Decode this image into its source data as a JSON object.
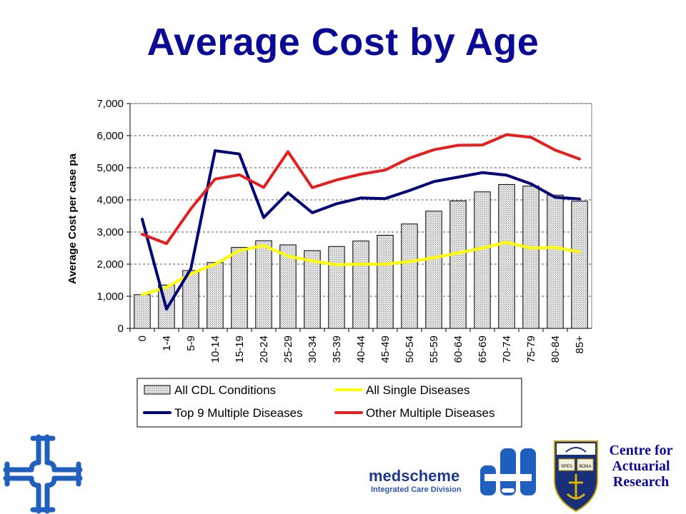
{
  "title": "Average Cost by Age",
  "chart_data": {
    "type": "bar",
    "ylabel": "Average Cost per case pa",
    "ylim": [
      0,
      7000
    ],
    "yticks": [
      0,
      1000,
      2000,
      3000,
      4000,
      5000,
      6000,
      7000
    ],
    "ytick_labels": [
      "0",
      "1,000",
      "2,000",
      "3,000",
      "4,000",
      "5,000",
      "6,000",
      "7,000"
    ],
    "grid": true,
    "legend_position": "bottom",
    "categories": [
      "0",
      "1-4",
      "5-9",
      "10-14",
      "15-19",
      "20-24",
      "25-29",
      "30-34",
      "35-39",
      "40-44",
      "45-49",
      "50-54",
      "55-59",
      "60-64",
      "65-69",
      "70-74",
      "75-79",
      "80-84",
      "85+"
    ],
    "series": [
      {
        "name": "All CDL Conditions",
        "type": "bar",
        "color": "#d9d9d9",
        "values": [
          1050,
          1350,
          1800,
          2050,
          2520,
          2730,
          2600,
          2420,
          2550,
          2720,
          2900,
          3250,
          3650,
          3970,
          4250,
          4480,
          4430,
          4150,
          3960
        ]
      },
      {
        "name": "All Single Diseases",
        "type": "line",
        "color": "#ffff00",
        "values": [
          1050,
          1280,
          1700,
          2000,
          2420,
          2580,
          2250,
          2100,
          1980,
          2000,
          2000,
          2080,
          2200,
          2350,
          2500,
          2680,
          2500,
          2520,
          2380
        ]
      },
      {
        "name": "Top 9 Multiple Diseases",
        "type": "line",
        "color": "#00007a",
        "values": [
          3400,
          600,
          1850,
          5530,
          5430,
          3450,
          4220,
          3600,
          3880,
          4060,
          4040,
          4290,
          4570,
          4710,
          4850,
          4770,
          4500,
          4080,
          4030
        ]
      },
      {
        "name": "Other Multiple Diseases",
        "type": "line",
        "color": "#e61e1e",
        "values": [
          2930,
          2640,
          3720,
          4650,
          4780,
          4390,
          5500,
          4380,
          4620,
          4800,
          4930,
          5300,
          5560,
          5700,
          5710,
          6030,
          5950,
          5550,
          5270
        ]
      }
    ]
  },
  "logos": {
    "left_emblem": "cross-emblem",
    "medscheme_name": "medscheme",
    "medscheme_division": "Integrated Care Division",
    "medscheme_mark": "medscheme-mark",
    "crest": "university-crest",
    "crest_motto_left": "SPES",
    "crest_motto_right": "BONA",
    "car_lines": [
      "Centre for",
      "Actuarial",
      "Research"
    ]
  },
  "colors": {
    "title": "#0a0a96",
    "logo_blue": "#1f5fbf",
    "crest_blue": "#1a2f7a"
  }
}
